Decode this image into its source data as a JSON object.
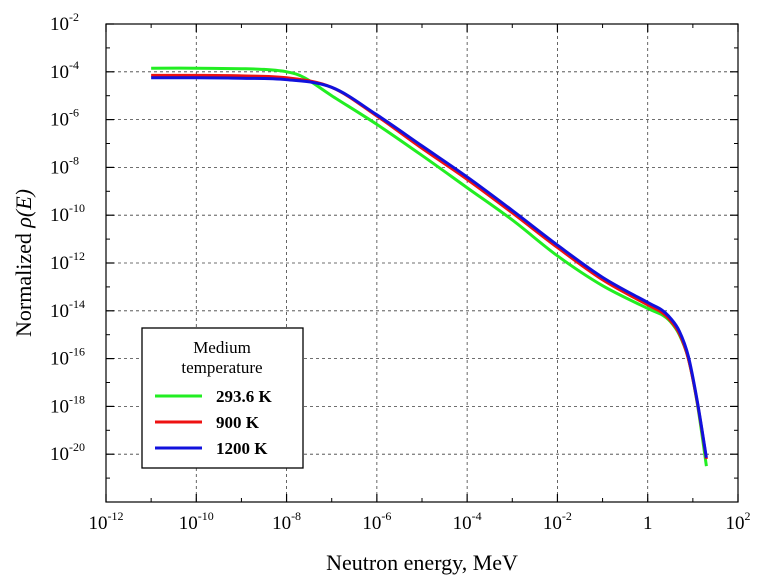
{
  "chart_data": {
    "type": "line",
    "xscale": "log",
    "yscale": "log",
    "xlabel": "Neutron energy, MeV",
    "ylabel_prefix": "Normalized ",
    "ylabel_symbol": "ρ(E)",
    "xlim_exp": [
      -12,
      2
    ],
    "ylim_exp": [
      -22,
      -2
    ],
    "xticks": [
      {
        "base": "10",
        "exp": "-12",
        "value_exp": -12
      },
      {
        "base": "10",
        "exp": "-10",
        "value_exp": -10
      },
      {
        "base": "10",
        "exp": "-8",
        "value_exp": -8
      },
      {
        "base": "10",
        "exp": "-6",
        "value_exp": -6
      },
      {
        "base": "10",
        "exp": "-4",
        "value_exp": -4
      },
      {
        "base": "10",
        "exp": "-2",
        "value_exp": -2
      },
      {
        "base": "1",
        "exp": "",
        "value_exp": 0
      },
      {
        "base": "10",
        "exp": "2",
        "value_exp": 2
      }
    ],
    "yticks": [
      {
        "base": "10",
        "exp": "-2",
        "value_exp": -2
      },
      {
        "base": "10",
        "exp": "-4",
        "value_exp": -4
      },
      {
        "base": "10",
        "exp": "-6",
        "value_exp": -6
      },
      {
        "base": "10",
        "exp": "-8",
        "value_exp": -8
      },
      {
        "base": "10",
        "exp": "-10",
        "value_exp": -10
      },
      {
        "base": "10",
        "exp": "-12",
        "value_exp": -12
      },
      {
        "base": "10",
        "exp": "-14",
        "value_exp": -14
      },
      {
        "base": "10",
        "exp": "-16",
        "value_exp": -16
      },
      {
        "base": "10",
        "exp": "-18",
        "value_exp": -18
      },
      {
        "base": "10",
        "exp": "-20",
        "value_exp": -20
      }
    ],
    "grid": true,
    "legend": {
      "title_line1": "Medium",
      "title_line2": "temperature",
      "placement": "bottom-left"
    },
    "series": [
      {
        "name": "293.6 K",
        "color": "#22ee22",
        "log10_x": [
          -11,
          -10,
          -9,
          -8.5,
          -8,
          -7.6,
          -7,
          -6,
          -5,
          -4,
          -3,
          -2,
          -1,
          0,
          0.3,
          0.5,
          0.7,
          0.9,
          1.1,
          1.3
        ],
        "log10_y": [
          -3.85,
          -3.85,
          -3.87,
          -3.9,
          -4.0,
          -4.25,
          -5.0,
          -6.2,
          -7.5,
          -8.85,
          -10.2,
          -11.7,
          -12.95,
          -13.9,
          -14.15,
          -14.45,
          -15.0,
          -16.0,
          -17.9,
          -20.5
        ]
      },
      {
        "name": "900 K",
        "color": "#ee1111",
        "log10_x": [
          -11,
          -10,
          -9,
          -8,
          -7,
          -6,
          -5,
          -4,
          -3,
          -2,
          -1,
          0,
          0.3,
          0.5,
          0.7,
          0.9,
          1.1,
          1.3
        ],
        "log10_y": [
          -4.15,
          -4.15,
          -4.17,
          -4.25,
          -4.65,
          -5.85,
          -7.2,
          -8.5,
          -9.9,
          -11.35,
          -12.7,
          -13.75,
          -14.05,
          -14.4,
          -14.95,
          -16.0,
          -17.85,
          -20.2
        ]
      },
      {
        "name": "1200 K",
        "color": "#1111dd",
        "log10_x": [
          -11,
          -10,
          -9,
          -8,
          -7,
          -6,
          -5,
          -4,
          -3,
          -2,
          -1,
          0,
          0.3,
          0.5,
          0.7,
          0.9,
          1.1,
          1.3
        ],
        "log10_y": [
          -4.25,
          -4.25,
          -4.27,
          -4.33,
          -4.65,
          -5.8,
          -7.1,
          -8.4,
          -9.8,
          -11.25,
          -12.6,
          -13.65,
          -13.95,
          -14.3,
          -14.85,
          -15.9,
          -17.8,
          -20.15
        ]
      }
    ]
  }
}
